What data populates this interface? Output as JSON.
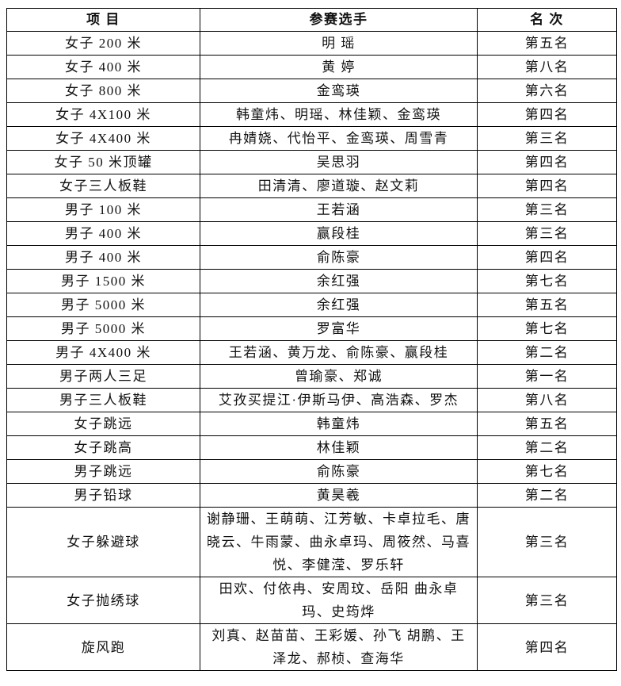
{
  "table": {
    "header": [
      "项 目",
      "参赛选手",
      "名 次"
    ],
    "rows": [
      [
        "女子 200 米",
        "明 瑶",
        "第五名"
      ],
      [
        "女子 400 米",
        "黄 婷",
        "第八名"
      ],
      [
        "女子 800 米",
        "金鸾瑛",
        "第六名"
      ],
      [
        "女子 4X100 米",
        "韩童炜、明瑶、林佳颖、金鸾瑛",
        "第四名"
      ],
      [
        "女子 4X400 米",
        "冉婧娆、代怡平、金鸾瑛、周雪青",
        "第三名"
      ],
      [
        "女子 50 米顶罐",
        "吴思羽",
        "第四名"
      ],
      [
        "女子三人板鞋",
        "田清清、廖道璇、赵文莉",
        "第四名"
      ],
      [
        "男子 100 米",
        "王若涵",
        "第三名"
      ],
      [
        "男子 400 米",
        "赢段桂",
        "第三名"
      ],
      [
        "男子 400 米",
        "俞陈豪",
        "第四名"
      ],
      [
        "男子 1500 米",
        "余红强",
        "第七名"
      ],
      [
        "男子 5000 米",
        "余红强",
        "第五名"
      ],
      [
        "男子 5000 米",
        "罗富华",
        "第七名"
      ],
      [
        "男子 4X400 米",
        "王若涵、黄万龙、俞陈豪、赢段桂",
        "第二名"
      ],
      [
        "男子两人三足",
        "曾瑜豪、郑诚",
        "第一名"
      ],
      [
        "男子三人板鞋",
        "艾孜买提江·伊斯马伊、高浩森、罗杰",
        "第八名"
      ],
      [
        "女子跳远",
        "韩童炜",
        "第五名"
      ],
      [
        "女子跳高",
        "林佳颖",
        "第二名"
      ],
      [
        "男子跳远",
        "俞陈豪",
        "第七名"
      ],
      [
        "男子铅球",
        "黄昊羲",
        "第二名"
      ],
      [
        "女子躲避球",
        "谢静珊、王萌萌、江芳敏、卡卓拉毛、唐晓云、牛雨蒙、曲永卓玛、周筱然、马喜悦、李健滢、罗乐轩",
        "第三名"
      ],
      [
        "女子抛绣球",
        "田欢、付依冉、安周玟、岳阳 曲永卓玛、史筠烨",
        "第三名"
      ],
      [
        "旋风跑",
        "刘真、赵苗苗、王彩媛、孙飞 胡鹏、王泽龙、郝桢、查海华",
        "第四名"
      ]
    ]
  }
}
